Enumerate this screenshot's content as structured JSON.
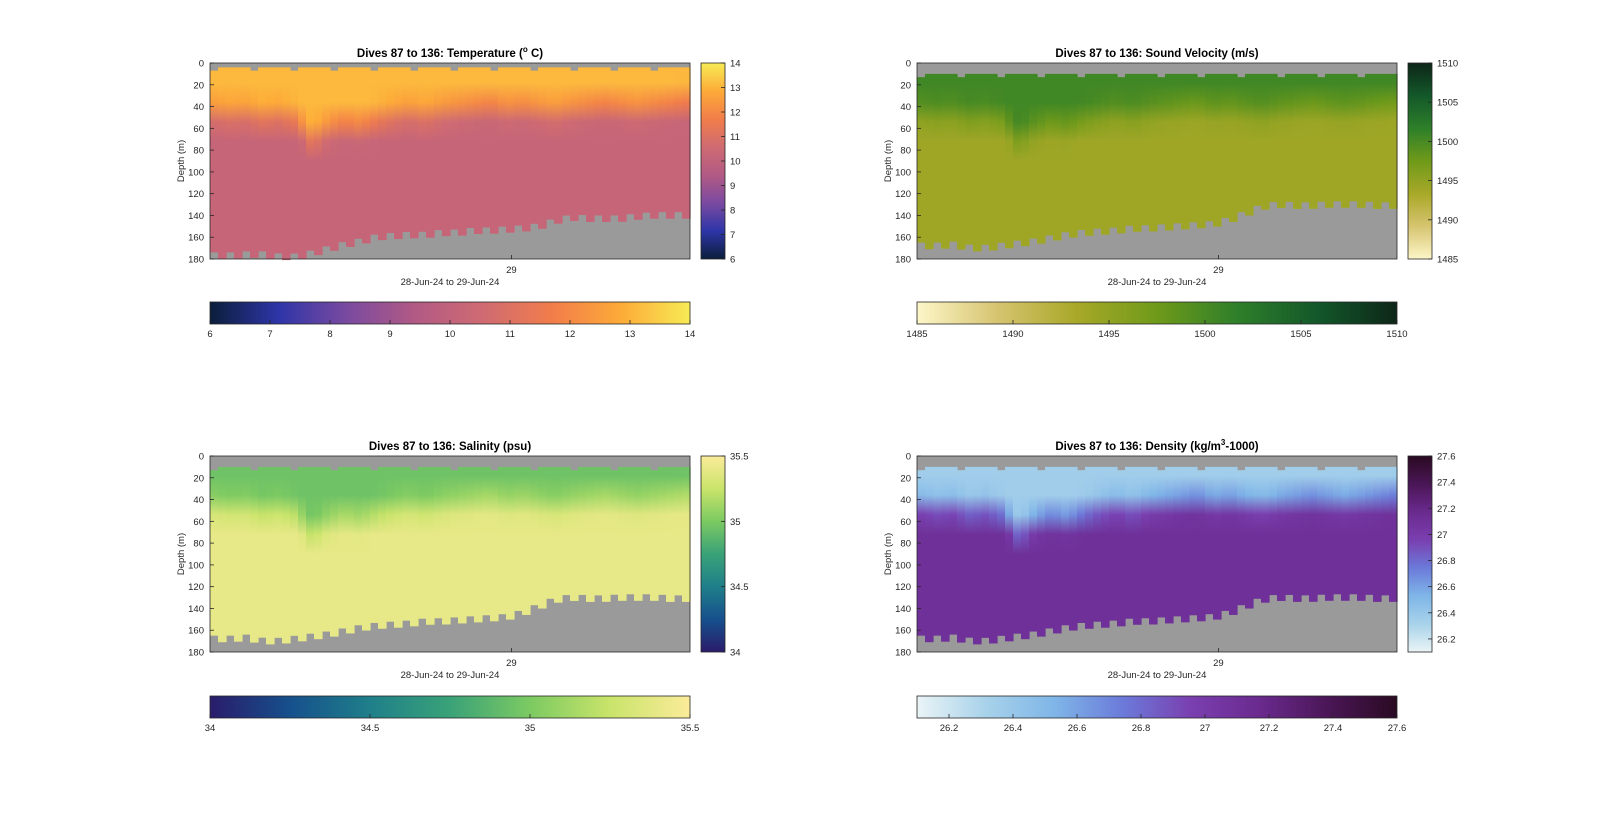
{
  "chart_data": [
    {
      "type": "heatmap",
      "title": "Dives 87 to 136: Temperature (",
      "title_sup": "o",
      "title_tail": " C)",
      "ylabel": "Depth (m)",
      "xlabel": "28-Jun-24 to 29-Jun-24",
      "x_ticks": [
        "29"
      ],
      "y_ticks": [
        "0",
        "20",
        "40",
        "60",
        "80",
        "100",
        "120",
        "140",
        "160",
        "180"
      ],
      "ylim": [
        0,
        180
      ],
      "clim": [
        6,
        14
      ],
      "colorbar_v_ticks": [
        "6",
        "7",
        "8",
        "9",
        "10",
        "11",
        "12",
        "13",
        "14"
      ],
      "colorbar_h_ticks": [
        "6",
        "7",
        "8",
        "9",
        "10",
        "11",
        "12",
        "13",
        "14"
      ],
      "colormap": [
        "#0b1e3a",
        "#2e35a8",
        "#7a4aa0",
        "#b25a84",
        "#cf6b72",
        "#f27d4a",
        "#fdab38",
        "#f7eb55"
      ],
      "mixed_layer_value": 13.1,
      "deep_value": 10.2,
      "thermocline_depth_m": [
        55,
        57,
        56,
        60,
        58,
        62,
        80,
        70,
        65,
        68,
        62,
        58,
        55,
        58,
        54,
        52,
        50,
        48,
        52,
        50,
        53,
        55,
        52,
        50,
        48,
        50,
        52,
        50,
        48,
        46
      ],
      "top_gap_m": 4,
      "bottom_depth_m": [
        177,
        177,
        176,
        176,
        178,
        178,
        175,
        171,
        167,
        164,
        160,
        159,
        158,
        158,
        156,
        156,
        154,
        154,
        153,
        152,
        150,
        145,
        142,
        143,
        143,
        143,
        141,
        140,
        140,
        140
      ]
    },
    {
      "type": "heatmap",
      "title": "Dives 87 to 136: Sound Velocity (m/s)",
      "ylabel": "Depth (m)",
      "xlabel": "28-Jun-24 to 29-Jun-24",
      "x_ticks": [
        "29"
      ],
      "y_ticks": [
        "0",
        "20",
        "40",
        "60",
        "80",
        "100",
        "120",
        "140",
        "160",
        "180"
      ],
      "ylim": [
        0,
        180
      ],
      "clim": [
        1485,
        1510
      ],
      "colorbar_v_ticks": [
        "1485",
        "1490",
        "1495",
        "1500",
        "1505",
        "1510"
      ],
      "colorbar_h_ticks": [
        "1485",
        "1490",
        "1495",
        "1500",
        "1505",
        "1510"
      ],
      "colormap": [
        "#fdf6c8",
        "#d6c470",
        "#a8a828",
        "#6f9a1a",
        "#2e7f2a",
        "#13582a",
        "#0d2618"
      ],
      "mixed_layer_value": 1500.5,
      "deep_value": 1494.0,
      "thermocline_depth_m": [
        55,
        57,
        56,
        60,
        58,
        62,
        80,
        70,
        65,
        68,
        62,
        58,
        55,
        58,
        54,
        52,
        50,
        48,
        52,
        50,
        53,
        55,
        52,
        50,
        48,
        50,
        52,
        50,
        48,
        46
      ],
      "top_gap_m": 10,
      "bottom_depth_m": [
        168,
        168,
        167,
        170,
        170,
        168,
        166,
        164,
        161,
        158,
        156,
        155,
        154,
        152,
        152,
        151,
        150,
        149,
        148,
        144,
        138,
        132,
        130,
        131,
        131,
        130,
        130,
        130,
        131,
        131
      ]
    },
    {
      "type": "heatmap",
      "title": "Dives 87 to 136: Salinity (psu)",
      "ylabel": "Depth (m)",
      "xlabel": "28-Jun-24 to 29-Jun-24",
      "x_ticks": [
        "29"
      ],
      "y_ticks": [
        "0",
        "20",
        "40",
        "60",
        "80",
        "100",
        "120",
        "140",
        "160",
        "180"
      ],
      "ylim": [
        0,
        180
      ],
      "clim": [
        34,
        35.5
      ],
      "colorbar_v_ticks": [
        "34",
        "34.5",
        "35",
        "35.5"
      ],
      "colorbar_h_ticks": [
        "34",
        "34.5",
        "35",
        "35.5"
      ],
      "colormap": [
        "#2a1c6b",
        "#16508c",
        "#1f7f8a",
        "#3aa278",
        "#7cca62",
        "#c9e46a",
        "#fbeb9a"
      ],
      "mixed_layer_value": 34.95,
      "deep_value": 35.4,
      "thermocline_depth_m": [
        55,
        57,
        56,
        60,
        58,
        62,
        80,
        70,
        65,
        68,
        62,
        58,
        55,
        58,
        54,
        52,
        50,
        48,
        52,
        50,
        53,
        55,
        52,
        50,
        48,
        50,
        52,
        50,
        48,
        46
      ],
      "top_gap_m": 10,
      "bottom_depth_m": [
        168,
        168,
        167,
        170,
        170,
        168,
        166,
        164,
        161,
        158,
        156,
        155,
        154,
        152,
        152,
        151,
        150,
        149,
        148,
        144,
        138,
        132,
        130,
        131,
        131,
        130,
        130,
        130,
        131,
        131
      ]
    },
    {
      "type": "heatmap",
      "title": "Dives 87 to 136: Density (kg/m",
      "title_sup": "3",
      "title_tail": "-1000)",
      "ylabel": "Depth (m)",
      "xlabel": "28-Jun-24 to 29-Jun-24",
      "x_ticks": [
        "29"
      ],
      "y_ticks": [
        "0",
        "20",
        "40",
        "60",
        "80",
        "100",
        "120",
        "140",
        "160",
        "180"
      ],
      "ylim": [
        0,
        180
      ],
      "clim": [
        26.1,
        27.6
      ],
      "colorbar_v_ticks": [
        "26.2",
        "26.4",
        "26.6",
        "26.8",
        "27",
        "27.2",
        "27.4",
        "27.6"
      ],
      "colorbar_h_ticks": [
        "26.2",
        "26.4",
        "26.6",
        "26.8",
        "27",
        "27.2",
        "27.4",
        "27.6"
      ],
      "colormap": [
        "#eaf4f6",
        "#a8d2ea",
        "#7fb6e8",
        "#6b7ad9",
        "#7a3fb0",
        "#6a2a8e",
        "#4a1656",
        "#2a0a22"
      ],
      "mixed_layer_value": 26.35,
      "deep_value": 27.1,
      "thermocline_depth_m": [
        55,
        57,
        56,
        60,
        58,
        62,
        80,
        70,
        65,
        68,
        62,
        58,
        55,
        58,
        54,
        52,
        50,
        48,
        52,
        50,
        53,
        55,
        52,
        50,
        48,
        50,
        52,
        50,
        48,
        46
      ],
      "top_gap_m": 10,
      "bottom_depth_m": [
        168,
        168,
        167,
        170,
        170,
        168,
        166,
        164,
        161,
        158,
        156,
        155,
        154,
        152,
        152,
        151,
        150,
        149,
        148,
        144,
        138,
        132,
        130,
        131,
        131,
        130,
        130,
        130,
        131,
        131
      ]
    }
  ],
  "colors": {
    "nodata": "#9a9a9a",
    "axis": "#262626"
  }
}
